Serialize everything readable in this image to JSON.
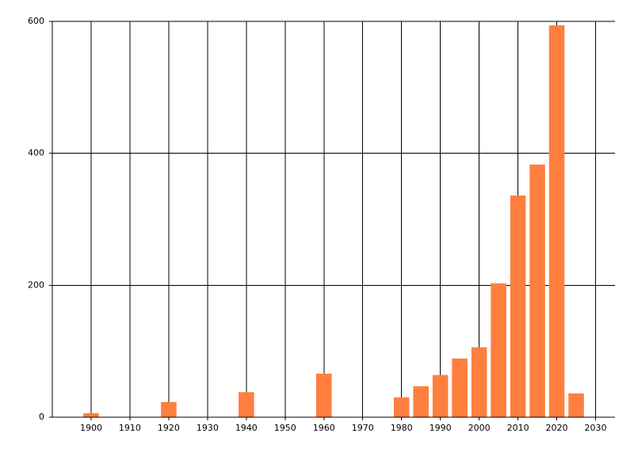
{
  "chart_data": {
    "type": "bar",
    "x": [
      1900,
      1920,
      1940,
      1960,
      1980,
      1985,
      1990,
      1995,
      2000,
      2005,
      2010,
      2015,
      2020,
      2025
    ],
    "values": [
      6,
      23,
      38,
      66,
      30,
      47,
      64,
      89,
      106,
      203,
      336,
      383,
      594,
      36
    ],
    "color": "#ff7f3f",
    "xlim": [
      1890,
      2035
    ],
    "xticks": [
      1900,
      1910,
      1920,
      1930,
      1940,
      1950,
      1960,
      1970,
      1980,
      1990,
      2000,
      2010,
      2020,
      2030
    ],
    "ylim": [
      0,
      600
    ],
    "yticks": [
      0,
      200,
      400,
      600
    ],
    "grid": true
  }
}
